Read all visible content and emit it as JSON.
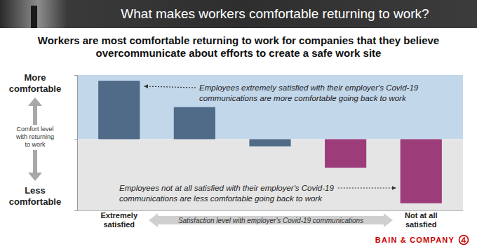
{
  "chart_data": {
    "type": "bar",
    "title": "What makes workers comfortable returning to work?",
    "subtitle": "Workers are most comfortable returning to work for companies that they believe overcommunicate about efforts to create a safe work site",
    "xlabel": "Satisfaction level with employer's Covid-19 communications",
    "ylabel": "Comfort level with returning to work",
    "categories": [
      "Extremely satisfied",
      null,
      null,
      null,
      "Not at all satisfied"
    ],
    "values": [
      82,
      45,
      -10,
      -40,
      -90
    ],
    "colors": [
      "#4f6b88",
      "#4f6b88",
      "#4f6b88",
      "#9c3d7a",
      "#9c3d7a"
    ],
    "ylim": [
      -100,
      90
    ],
    "yticks": [
      0
    ],
    "tick_labels": "x",
    "annotations": [
      {
        "text": "More comfortable"
      },
      {
        "text": "Less comfortable"
      },
      {
        "text": "Employees extremely satisfied with their employer's Covid-19 communications are more comfortable going back to work"
      },
      {
        "text": "Employees not at all satisfied with their employer's Covid-19 communications are less comfortable going back to work"
      }
    ],
    "source": "BAIN & COMPANY"
  }
}
